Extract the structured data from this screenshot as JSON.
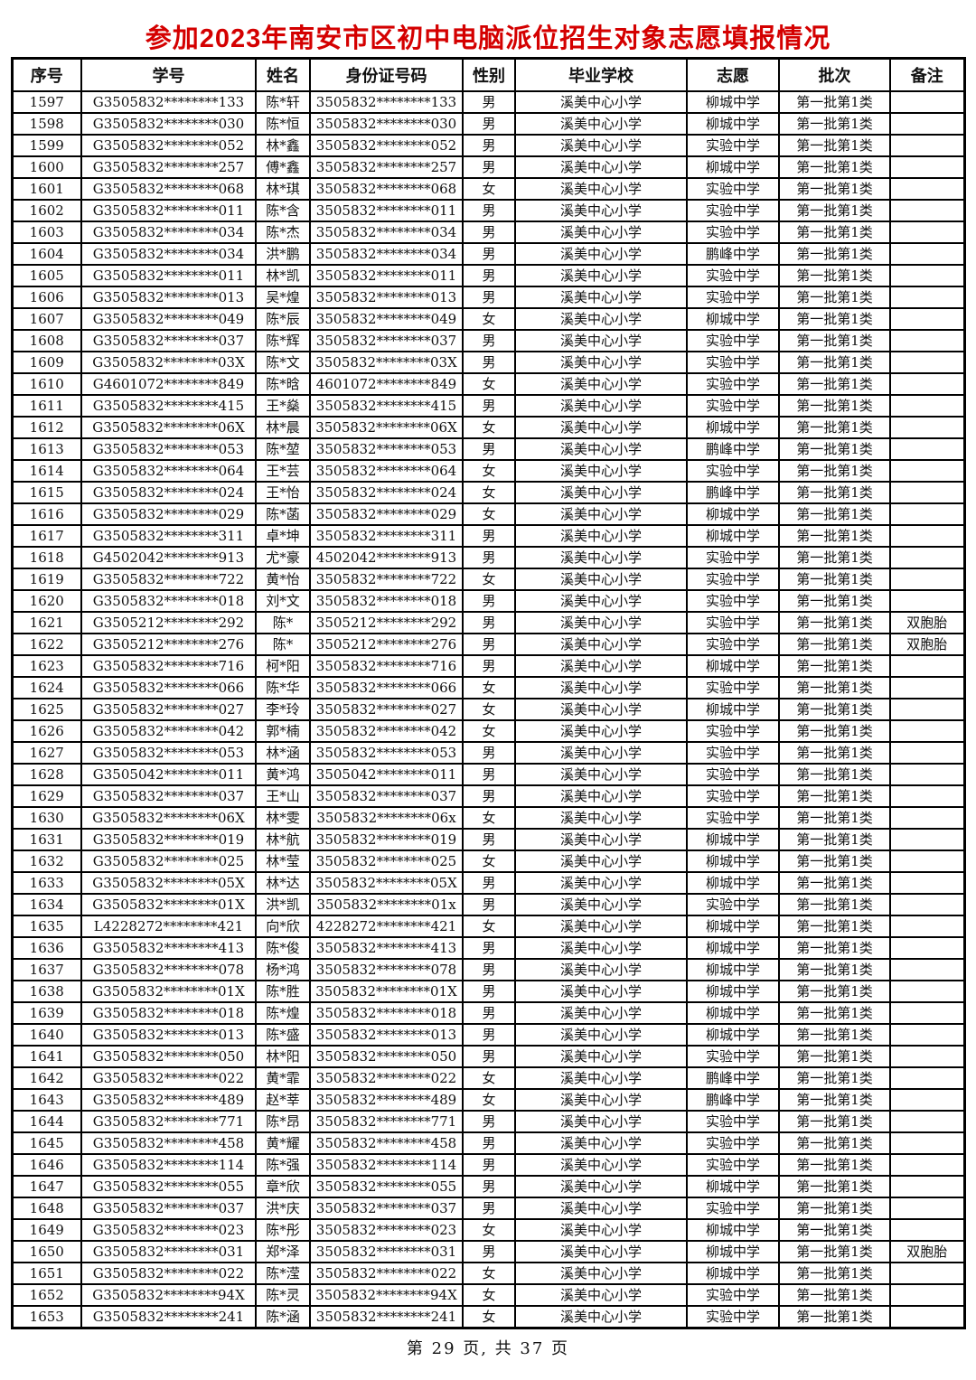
{
  "title": "参加2023年南安市区初中电脑派位招生对象志愿填报情况",
  "title_color": "#d40000",
  "footer": "第 29 页, 共 37 页",
  "table": {
    "headers": [
      "序号",
      "学号",
      "姓名",
      "身份证号码",
      "性别",
      "毕业学校",
      "志愿",
      "批次",
      "备注"
    ],
    "rows": [
      [
        "1597",
        "G3505832********133",
        "陈*轩",
        "3505832********133",
        "男",
        "溪美中心小学",
        "柳城中学",
        "第一批第1类",
        ""
      ],
      [
        "1598",
        "G3505832********030",
        "陈*恒",
        "3505832********030",
        "男",
        "溪美中心小学",
        "柳城中学",
        "第一批第1类",
        ""
      ],
      [
        "1599",
        "G3505832********052",
        "林*鑫",
        "3505832********052",
        "男",
        "溪美中心小学",
        "实验中学",
        "第一批第1类",
        ""
      ],
      [
        "1600",
        "G3505832********257",
        "傅*鑫",
        "3505832********257",
        "男",
        "溪美中心小学",
        "柳城中学",
        "第一批第1类",
        ""
      ],
      [
        "1601",
        "G3505832********068",
        "林*琪",
        "3505832********068",
        "女",
        "溪美中心小学",
        "实验中学",
        "第一批第1类",
        ""
      ],
      [
        "1602",
        "G3505832********011",
        "陈*含",
        "3505832********011",
        "男",
        "溪美中心小学",
        "实验中学",
        "第一批第1类",
        ""
      ],
      [
        "1603",
        "G3505832********034",
        "陈*杰",
        "3505832********034",
        "男",
        "溪美中心小学",
        "实验中学",
        "第一批第1类",
        ""
      ],
      [
        "1604",
        "G3505832********034",
        "洪*鹏",
        "3505832********034",
        "男",
        "溪美中心小学",
        "鹏峰中学",
        "第一批第1类",
        ""
      ],
      [
        "1605",
        "G3505832********011",
        "林*凯",
        "3505832********011",
        "男",
        "溪美中心小学",
        "实验中学",
        "第一批第1类",
        ""
      ],
      [
        "1606",
        "G3505832********013",
        "吴*煌",
        "3505832********013",
        "男",
        "溪美中心小学",
        "实验中学",
        "第一批第1类",
        ""
      ],
      [
        "1607",
        "G3505832********049",
        "陈*辰",
        "3505832********049",
        "女",
        "溪美中心小学",
        "柳城中学",
        "第一批第1类",
        ""
      ],
      [
        "1608",
        "G3505832********037",
        "陈*辉",
        "3505832********037",
        "男",
        "溪美中心小学",
        "实验中学",
        "第一批第1类",
        ""
      ],
      [
        "1609",
        "G3505832********03X",
        "陈*文",
        "3505832********03X",
        "男",
        "溪美中心小学",
        "实验中学",
        "第一批第1类",
        ""
      ],
      [
        "1610",
        "G4601072********849",
        "陈*晗",
        "4601072********849",
        "女",
        "溪美中心小学",
        "实验中学",
        "第一批第1类",
        ""
      ],
      [
        "1611",
        "G3505832********415",
        "王*燊",
        "3505832********415",
        "男",
        "溪美中心小学",
        "实验中学",
        "第一批第1类",
        ""
      ],
      [
        "1612",
        "G3505832********06X",
        "林*晨",
        "3505832********06X",
        "女",
        "溪美中心小学",
        "柳城中学",
        "第一批第1类",
        ""
      ],
      [
        "1613",
        "G3505832********053",
        "陈*堃",
        "3505832********053",
        "男",
        "溪美中心小学",
        "鹏峰中学",
        "第一批第1类",
        ""
      ],
      [
        "1614",
        "G3505832********064",
        "王*芸",
        "3505832********064",
        "女",
        "溪美中心小学",
        "实验中学",
        "第一批第1类",
        ""
      ],
      [
        "1615",
        "G3505832********024",
        "王*怡",
        "3505832********024",
        "女",
        "溪美中心小学",
        "鹏峰中学",
        "第一批第1类",
        ""
      ],
      [
        "1616",
        "G3505832********029",
        "陈*菡",
        "3505832********029",
        "女",
        "溪美中心小学",
        "柳城中学",
        "第一批第1类",
        ""
      ],
      [
        "1617",
        "G3505832********311",
        "卓*坤",
        "3505832********311",
        "男",
        "溪美中心小学",
        "柳城中学",
        "第一批第1类",
        ""
      ],
      [
        "1618",
        "G4502042********913",
        "尤*豪",
        "4502042********913",
        "男",
        "溪美中心小学",
        "实验中学",
        "第一批第1类",
        ""
      ],
      [
        "1619",
        "G3505832********722",
        "黄*怡",
        "3505832********722",
        "女",
        "溪美中心小学",
        "实验中学",
        "第一批第1类",
        ""
      ],
      [
        "1620",
        "G3505832********018",
        "刘*文",
        "3505832********018",
        "男",
        "溪美中心小学",
        "实验中学",
        "第一批第1类",
        ""
      ],
      [
        "1621",
        "G3505212********292",
        "陈*",
        "3505212********292",
        "男",
        "溪美中心小学",
        "实验中学",
        "第一批第1类",
        "双胞胎"
      ],
      [
        "1622",
        "G3505212********276",
        "陈*",
        "3505212********276",
        "男",
        "溪美中心小学",
        "实验中学",
        "第一批第1类",
        "双胞胎"
      ],
      [
        "1623",
        "G3505832********716",
        "柯*阳",
        "3505832********716",
        "男",
        "溪美中心小学",
        "柳城中学",
        "第一批第1类",
        ""
      ],
      [
        "1624",
        "G3505832********066",
        "陈*华",
        "3505832********066",
        "女",
        "溪美中心小学",
        "实验中学",
        "第一批第1类",
        ""
      ],
      [
        "1625",
        "G3505832********027",
        "李*玲",
        "3505832********027",
        "女",
        "溪美中心小学",
        "柳城中学",
        "第一批第1类",
        ""
      ],
      [
        "1626",
        "G3505832********042",
        "郭*楠",
        "3505832********042",
        "女",
        "溪美中心小学",
        "实验中学",
        "第一批第1类",
        ""
      ],
      [
        "1627",
        "G3505832********053",
        "林*涵",
        "3505832********053",
        "男",
        "溪美中心小学",
        "实验中学",
        "第一批第1类",
        ""
      ],
      [
        "1628",
        "G3505042********011",
        "黄*鸿",
        "3505042********011",
        "男",
        "溪美中心小学",
        "实验中学",
        "第一批第1类",
        ""
      ],
      [
        "1629",
        "G3505832********037",
        "王*山",
        "3505832********037",
        "男",
        "溪美中心小学",
        "实验中学",
        "第一批第1类",
        ""
      ],
      [
        "1630",
        "G3505832********06X",
        "林*雯",
        "3505832********06x",
        "女",
        "溪美中心小学",
        "实验中学",
        "第一批第1类",
        ""
      ],
      [
        "1631",
        "G3505832********019",
        "林*航",
        "3505832********019",
        "男",
        "溪美中心小学",
        "柳城中学",
        "第一批第1类",
        ""
      ],
      [
        "1632",
        "G3505832********025",
        "林*莹",
        "3505832********025",
        "女",
        "溪美中心小学",
        "柳城中学",
        "第一批第1类",
        ""
      ],
      [
        "1633",
        "G3505832********05X",
        "林*达",
        "3505832********05X",
        "男",
        "溪美中心小学",
        "柳城中学",
        "第一批第1类",
        ""
      ],
      [
        "1634",
        "G3505832********01X",
        "洪*凯",
        "3505832********01x",
        "男",
        "溪美中心小学",
        "实验中学",
        "第一批第1类",
        ""
      ],
      [
        "1635",
        "L4228272********421",
        "向*欣",
        "4228272********421",
        "女",
        "溪美中心小学",
        "柳城中学",
        "第一批第1类",
        ""
      ],
      [
        "1636",
        "G3505832********413",
        "陈*俊",
        "3505832********413",
        "男",
        "溪美中心小学",
        "柳城中学",
        "第一批第1类",
        ""
      ],
      [
        "1637",
        "G3505832********078",
        "杨*鸿",
        "3505832********078",
        "男",
        "溪美中心小学",
        "柳城中学",
        "第一批第1类",
        ""
      ],
      [
        "1638",
        "G3505832********01X",
        "陈*胜",
        "3505832********01X",
        "男",
        "溪美中心小学",
        "柳城中学",
        "第一批第1类",
        ""
      ],
      [
        "1639",
        "G3505832********018",
        "陈*煌",
        "3505832********018",
        "男",
        "溪美中心小学",
        "柳城中学",
        "第一批第1类",
        ""
      ],
      [
        "1640",
        "G3505832********013",
        "陈*盛",
        "3505832********013",
        "男",
        "溪美中心小学",
        "柳城中学",
        "第一批第1类",
        ""
      ],
      [
        "1641",
        "G3505832********050",
        "林*阳",
        "3505832********050",
        "男",
        "溪美中心小学",
        "实验中学",
        "第一批第1类",
        ""
      ],
      [
        "1642",
        "G3505832********022",
        "黄*霏",
        "3505832********022",
        "女",
        "溪美中心小学",
        "鹏峰中学",
        "第一批第1类",
        ""
      ],
      [
        "1643",
        "G3505832********489",
        "赵*莘",
        "3505832********489",
        "女",
        "溪美中心小学",
        "鹏峰中学",
        "第一批第1类",
        ""
      ],
      [
        "1644",
        "G3505832********771",
        "陈*昂",
        "3505832********771",
        "男",
        "溪美中心小学",
        "实验中学",
        "第一批第1类",
        ""
      ],
      [
        "1645",
        "G3505832********458",
        "黄*耀",
        "3505832********458",
        "男",
        "溪美中心小学",
        "实验中学",
        "第一批第1类",
        ""
      ],
      [
        "1646",
        "G3505832********114",
        "陈*强",
        "3505832********114",
        "男",
        "溪美中心小学",
        "实验中学",
        "第一批第1类",
        ""
      ],
      [
        "1647",
        "G3505832********055",
        "章*欣",
        "3505832********055",
        "男",
        "溪美中心小学",
        "柳城中学",
        "第一批第1类",
        ""
      ],
      [
        "1648",
        "G3505832********037",
        "洪*庆",
        "3505832********037",
        "男",
        "溪美中心小学",
        "实验中学",
        "第一批第1类",
        ""
      ],
      [
        "1649",
        "G3505832********023",
        "陈*彤",
        "3505832********023",
        "女",
        "溪美中心小学",
        "柳城中学",
        "第一批第1类",
        ""
      ],
      [
        "1650",
        "G3505832********031",
        "郑*泽",
        "3505832********031",
        "男",
        "溪美中心小学",
        "柳城中学",
        "第一批第1类",
        "双胞胎"
      ],
      [
        "1651",
        "G3505832********022",
        "陈*滢",
        "3505832********022",
        "女",
        "溪美中心小学",
        "柳城中学",
        "第一批第1类",
        ""
      ],
      [
        "1652",
        "G3505832********94X",
        "陈*灵",
        "3505832********94X",
        "女",
        "溪美中心小学",
        "实验中学",
        "第一批第1类",
        ""
      ],
      [
        "1653",
        "G3505832********241",
        "陈*涵",
        "3505832********241",
        "女",
        "溪美中心小学",
        "实验中学",
        "第一批第1类",
        ""
      ]
    ]
  }
}
